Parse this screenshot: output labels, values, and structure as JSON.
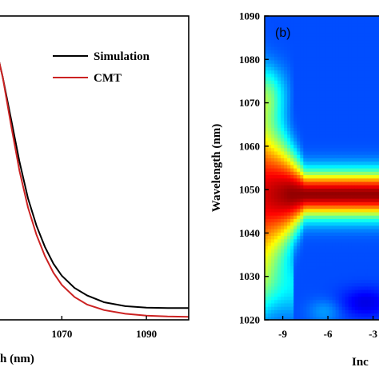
{
  "chart_data": [
    {
      "type": "line",
      "panel_label": "",
      "xlabel": "h (nm)",
      "ylabel": "",
      "xlim": [
        1055,
        1100
      ],
      "ylim": [
        0,
        1
      ],
      "x_ticks": [
        1070,
        1090
      ],
      "grid": false,
      "legend_position": "top-right",
      "series": [
        {
          "name": "Simulation",
          "color": "#000000",
          "x": [
            1055,
            1056,
            1058,
            1060,
            1062,
            1064,
            1066,
            1068,
            1070,
            1073,
            1076,
            1080,
            1085,
            1090,
            1095,
            1100
          ],
          "y": [
            0.86,
            0.8,
            0.66,
            0.52,
            0.4,
            0.31,
            0.24,
            0.185,
            0.145,
            0.105,
            0.08,
            0.058,
            0.045,
            0.04,
            0.039,
            0.039
          ]
        },
        {
          "name": "CMT",
          "color": "#cc2222",
          "x": [
            1055,
            1056,
            1058,
            1060,
            1062,
            1064,
            1066,
            1068,
            1070,
            1073,
            1076,
            1080,
            1085,
            1090,
            1095,
            1100
          ],
          "y": [
            0.86,
            0.8,
            0.64,
            0.49,
            0.37,
            0.28,
            0.21,
            0.155,
            0.115,
            0.075,
            0.05,
            0.032,
            0.02,
            0.014,
            0.011,
            0.01
          ]
        }
      ]
    },
    {
      "type": "heatmap",
      "panel_label": "(b)",
      "xlabel": "Inc",
      "ylabel": "Wavelength (nm)",
      "xlim": [
        -10.2,
        -2.5
      ],
      "ylim": [
        1020,
        1090
      ],
      "x_ticks": [
        -9,
        -6,
        -3
      ],
      "x_tick_labels": [
        "-9",
        "-6",
        "-3"
      ],
      "y_ticks": [
        1020,
        1030,
        1040,
        1050,
        1060,
        1070,
        1080,
        1090
      ],
      "colormap": "jet",
      "peak_wavelength": 1049
    }
  ]
}
